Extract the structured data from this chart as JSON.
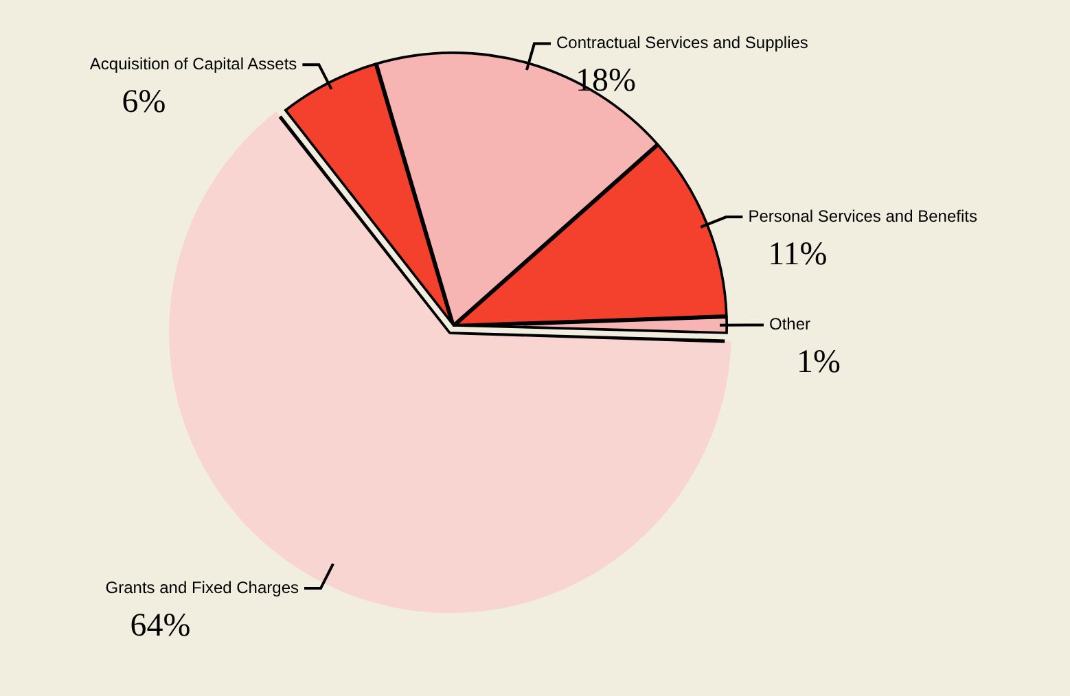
{
  "chart_data": {
    "type": "pie",
    "categories": [
      "Acquisition of Capital Assets",
      "Contractual Services and Supplies",
      "Personal Services and Benefits",
      "Other",
      "Grants and Fixed Charges"
    ],
    "values": [
      6,
      18,
      11,
      1,
      64
    ],
    "value_labels": [
      "6%",
      "18%",
      "11%",
      "1%",
      "64%"
    ],
    "colors": [
      "#f4412d",
      "#f6b4b2",
      "#f4412d",
      "#f6b4b2",
      "#f8d5d1"
    ],
    "legend": false
  }
}
